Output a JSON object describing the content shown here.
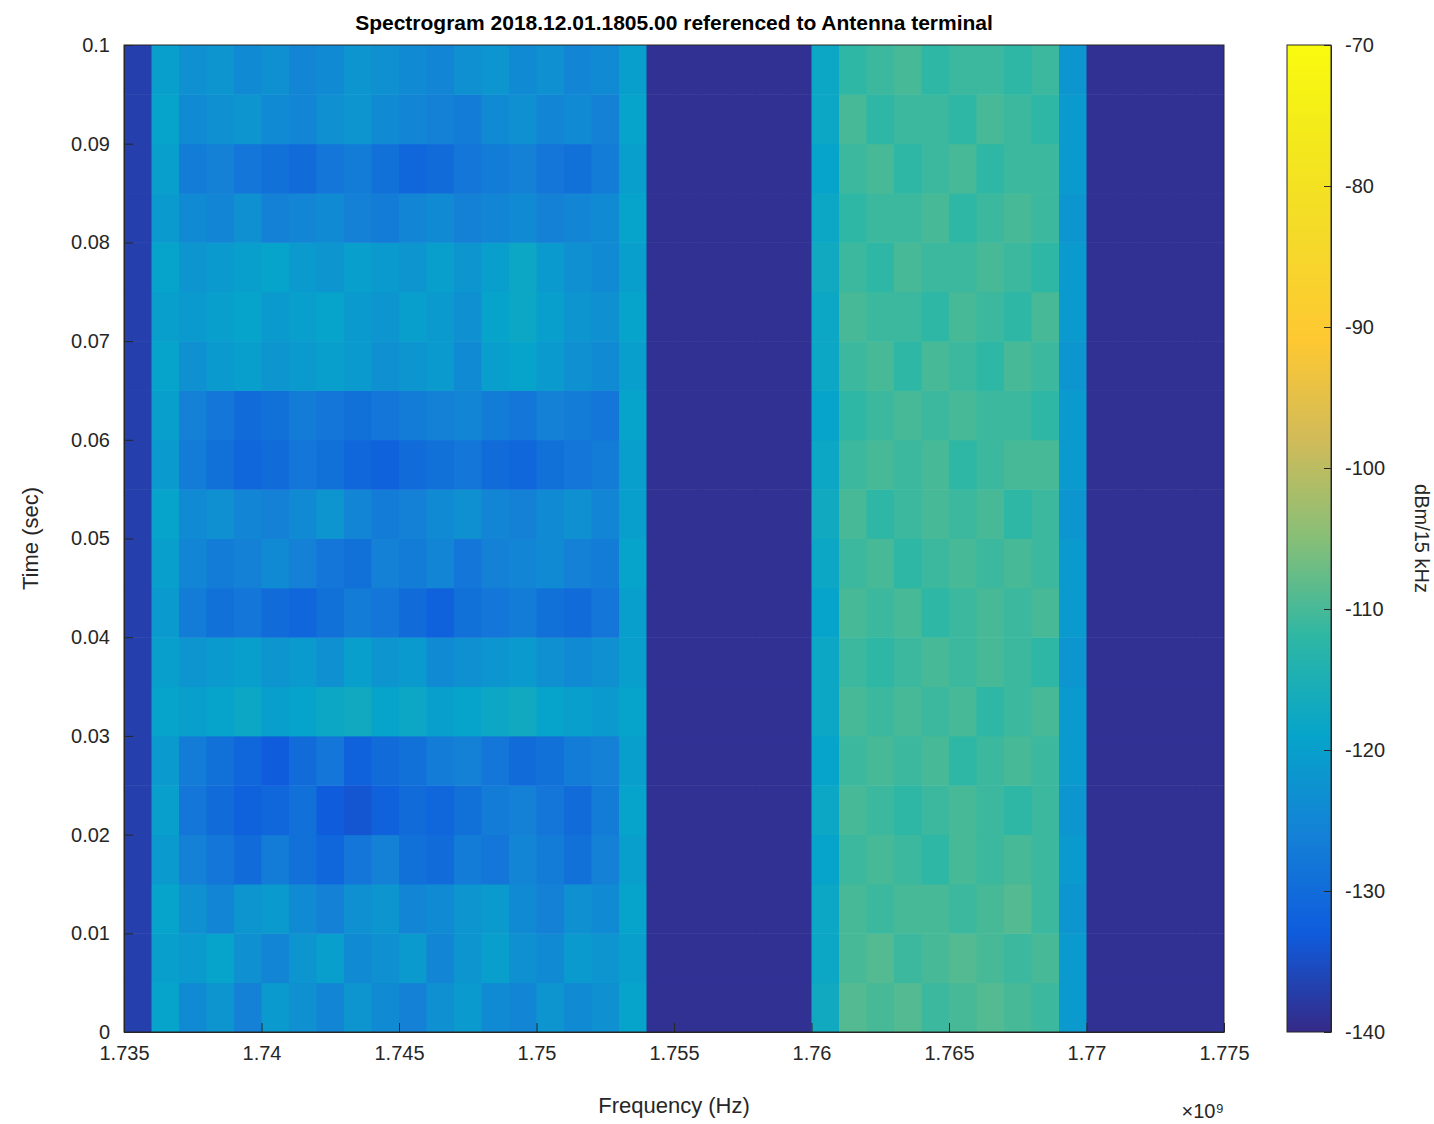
{
  "chart_data": {
    "type": "heatmap",
    "title": "Spectrogram 2018.12.01.1805.00 referenced to Antenna terminal",
    "x_label": "Frequency (Hz)",
    "y_label": "Time (sec)",
    "x_exponent_label": "×10⁹",
    "xlim": [
      1735000000,
      1775000000
    ],
    "xticks": [
      {
        "value": 1735000000,
        "label": "1.735"
      },
      {
        "value": 1740000000,
        "label": "1.74"
      },
      {
        "value": 1745000000,
        "label": "1.745"
      },
      {
        "value": 1750000000,
        "label": "1.75"
      },
      {
        "value": 1755000000,
        "label": "1.755"
      },
      {
        "value": 1760000000,
        "label": "1.76"
      },
      {
        "value": 1765000000,
        "label": "1.765"
      },
      {
        "value": 1770000000,
        "label": "1.77"
      },
      {
        "value": 1775000000,
        "label": "1.775"
      }
    ],
    "ylim": [
      0,
      0.1
    ],
    "yticks": [
      0,
      0.01,
      0.02,
      0.03,
      0.04,
      0.05,
      0.06,
      0.07,
      0.08,
      0.09,
      0.1
    ],
    "x_bins": [
      1735000000,
      1736000000,
      1737000000,
      1738000000,
      1739000000,
      1740000000,
      1741000000,
      1742000000,
      1743000000,
      1744000000,
      1745000000,
      1746000000,
      1747000000,
      1748000000,
      1749000000,
      1750000000,
      1751000000,
      1752000000,
      1753000000,
      1754000000,
      1755000000,
      1756000000,
      1757000000,
      1758000000,
      1759000000,
      1760000000,
      1761000000,
      1762000000,
      1763000000,
      1764000000,
      1765000000,
      1766000000,
      1767000000,
      1768000000,
      1769000000,
      1770000000,
      1771000000,
      1772000000,
      1773000000,
      1774000000,
      1775000000
    ],
    "y_bins": [
      0,
      0.005,
      0.01,
      0.015,
      0.02,
      0.025,
      0.03,
      0.035,
      0.04,
      0.045,
      0.05,
      0.055,
      0.06,
      0.065,
      0.07,
      0.075,
      0.08,
      0.085,
      0.09,
      0.095,
      0.1
    ],
    "z": [
      [
        -137,
        -119,
        -124,
        -122,
        -126,
        -121,
        -123,
        -125,
        -122,
        -124,
        -126,
        -123,
        -121,
        -124,
        -125,
        -122,
        -124,
        -123,
        -119,
        -139,
        -139,
        -139,
        -139,
        -139,
        -139,
        -117,
        -109,
        -110,
        -109,
        -111,
        -110,
        -109,
        -110,
        -111,
        -121,
        -139,
        -139,
        -139,
        -139,
        -139
      ],
      [
        -137,
        -120,
        -121,
        -119,
        -123,
        -125,
        -122,
        -120,
        -124,
        -123,
        -121,
        -125,
        -122,
        -120,
        -123,
        -124,
        -121,
        -122,
        -120,
        -139,
        -139,
        -139,
        -139,
        -139,
        -139,
        -118,
        -110,
        -109,
        -111,
        -110,
        -109,
        -110,
        -111,
        -110,
        -121,
        -139,
        -139,
        -139,
        -139,
        -139
      ],
      [
        -137,
        -119,
        -123,
        -125,
        -122,
        -121,
        -124,
        -126,
        -123,
        -122,
        -125,
        -124,
        -122,
        -121,
        -124,
        -126,
        -123,
        -124,
        -119,
        -139,
        -139,
        -139,
        -139,
        -139,
        -139,
        -118,
        -110,
        -111,
        -110,
        -110,
        -111,
        -110,
        -109,
        -111,
        -122,
        -139,
        -139,
        -139,
        -139,
        -139
      ],
      [
        -137,
        -121,
        -126,
        -128,
        -130,
        -127,
        -129,
        -131,
        -128,
        -126,
        -129,
        -130,
        -127,
        -128,
        -125,
        -127,
        -129,
        -126,
        -120,
        -139,
        -139,
        -139,
        -139,
        -139,
        -139,
        -119,
        -111,
        -110,
        -111,
        -112,
        -110,
        -111,
        -110,
        -111,
        -121,
        -139,
        -139,
        -139,
        -139,
        -139
      ],
      [
        -137,
        -120,
        -128,
        -130,
        -132,
        -131,
        -129,
        -133,
        -134,
        -132,
        -130,
        -131,
        -129,
        -127,
        -126,
        -128,
        -130,
        -127,
        -119,
        -139,
        -139,
        -139,
        -139,
        -139,
        -139,
        -118,
        -110,
        -111,
        -112,
        -111,
        -110,
        -111,
        -112,
        -111,
        -122,
        -139,
        -139,
        -139,
        -139,
        -139
      ],
      [
        -137,
        -121,
        -127,
        -129,
        -131,
        -133,
        -130,
        -128,
        -132,
        -130,
        -129,
        -127,
        -126,
        -128,
        -130,
        -129,
        -127,
        -126,
        -120,
        -139,
        -139,
        -139,
        -139,
        -139,
        -139,
        -119,
        -111,
        -110,
        -111,
        -110,
        -112,
        -111,
        -110,
        -111,
        -121,
        -139,
        -139,
        -139,
        -139,
        -139
      ],
      [
        -137,
        -119,
        -120,
        -119,
        -118,
        -120,
        -119,
        -118,
        -117,
        -119,
        -118,
        -120,
        -119,
        -118,
        -117,
        -119,
        -120,
        -121,
        -119,
        -139,
        -139,
        -139,
        -139,
        -139,
        -139,
        -118,
        -110,
        -111,
        -110,
        -111,
        -110,
        -112,
        -111,
        -110,
        -121,
        -139,
        -139,
        -139,
        -139,
        -139
      ],
      [
        -137,
        -120,
        -122,
        -121,
        -120,
        -122,
        -121,
        -123,
        -120,
        -122,
        -121,
        -124,
        -123,
        -122,
        -121,
        -123,
        -124,
        -123,
        -120,
        -139,
        -139,
        -139,
        -139,
        -139,
        -139,
        -118,
        -111,
        -112,
        -111,
        -110,
        -111,
        -110,
        -111,
        -112,
        -122,
        -139,
        -139,
        -139,
        -139,
        -139
      ],
      [
        -137,
        -121,
        -127,
        -129,
        -128,
        -130,
        -131,
        -129,
        -127,
        -128,
        -130,
        -132,
        -129,
        -128,
        -127,
        -129,
        -130,
        -128,
        -120,
        -139,
        -139,
        -139,
        -139,
        -139,
        -139,
        -119,
        -110,
        -111,
        -110,
        -112,
        -111,
        -110,
        -111,
        -110,
        -121,
        -139,
        -139,
        -139,
        -139,
        -139
      ],
      [
        -137,
        -120,
        -125,
        -127,
        -126,
        -124,
        -126,
        -128,
        -129,
        -126,
        -127,
        -125,
        -128,
        -126,
        -125,
        -124,
        -126,
        -127,
        -119,
        -139,
        -139,
        -139,
        -139,
        -139,
        -139,
        -118,
        -111,
        -110,
        -112,
        -111,
        -110,
        -111,
        -110,
        -111,
        -121,
        -139,
        -139,
        -139,
        -139,
        -139
      ],
      [
        -137,
        -119,
        -124,
        -123,
        -125,
        -126,
        -124,
        -122,
        -125,
        -127,
        -126,
        -124,
        -123,
        -125,
        -126,
        -124,
        -123,
        -125,
        -120,
        -139,
        -139,
        -139,
        -139,
        -139,
        -139,
        -117,
        -110,
        -112,
        -111,
        -110,
        -111,
        -110,
        -112,
        -111,
        -122,
        -139,
        -139,
        -139,
        -139,
        -139
      ],
      [
        -137,
        -121,
        -127,
        -129,
        -131,
        -130,
        -128,
        -129,
        -131,
        -132,
        -130,
        -129,
        -128,
        -130,
        -131,
        -129,
        -128,
        -127,
        -120,
        -139,
        -139,
        -139,
        -139,
        -139,
        -139,
        -118,
        -111,
        -110,
        -111,
        -110,
        -112,
        -111,
        -110,
        -110,
        -121,
        -139,
        -139,
        -139,
        -139,
        -139
      ],
      [
        -137,
        -120,
        -126,
        -128,
        -130,
        -129,
        -127,
        -128,
        -129,
        -128,
        -127,
        -126,
        -125,
        -127,
        -128,
        -126,
        -127,
        -128,
        -119,
        -139,
        -139,
        -139,
        -139,
        -139,
        -139,
        -119,
        -112,
        -111,
        -110,
        -111,
        -110,
        -111,
        -111,
        -112,
        -121,
        -139,
        -139,
        -139,
        -139,
        -139
      ],
      [
        -137,
        -119,
        -123,
        -121,
        -120,
        -122,
        -121,
        -120,
        -121,
        -123,
        -122,
        -121,
        -124,
        -120,
        -119,
        -121,
        -123,
        -124,
        -120,
        -139,
        -139,
        -139,
        -139,
        -139,
        -139,
        -118,
        -111,
        -110,
        -112,
        -110,
        -111,
        -112,
        -110,
        -111,
        -122,
        -139,
        -139,
        -139,
        -139,
        -139
      ],
      [
        -137,
        -120,
        -121,
        -120,
        -119,
        -121,
        -120,
        -119,
        -121,
        -122,
        -120,
        -121,
        -123,
        -119,
        -118,
        -120,
        -122,
        -123,
        -119,
        -139,
        -139,
        -139,
        -139,
        -139,
        -139,
        -118,
        -110,
        -111,
        -111,
        -112,
        -110,
        -111,
        -112,
        -110,
        -121,
        -139,
        -139,
        -139,
        -139,
        -139
      ],
      [
        -137,
        -119,
        -122,
        -121,
        -120,
        -119,
        -121,
        -122,
        -120,
        -121,
        -122,
        -120,
        -122,
        -120,
        -118,
        -121,
        -123,
        -124,
        -120,
        -139,
        -139,
        -139,
        -139,
        -139,
        -139,
        -117,
        -111,
        -112,
        -110,
        -111,
        -111,
        -110,
        -111,
        -112,
        -121,
        -139,
        -139,
        -139,
        -139,
        -139
      ],
      [
        -137,
        -121,
        -124,
        -125,
        -123,
        -126,
        -125,
        -124,
        -126,
        -127,
        -125,
        -124,
        -126,
        -125,
        -124,
        -126,
        -125,
        -124,
        -119,
        -139,
        -139,
        -139,
        -139,
        -139,
        -139,
        -118,
        -112,
        -111,
        -111,
        -110,
        -112,
        -111,
        -110,
        -111,
        -122,
        -139,
        -139,
        -139,
        -139,
        -139
      ],
      [
        -137,
        -120,
        -127,
        -126,
        -128,
        -129,
        -130,
        -128,
        -127,
        -129,
        -131,
        -130,
        -128,
        -127,
        -126,
        -128,
        -129,
        -127,
        -120,
        -139,
        -139,
        -139,
        -139,
        -139,
        -139,
        -119,
        -111,
        -110,
        -112,
        -111,
        -110,
        -112,
        -111,
        -111,
        -121,
        -139,
        -139,
        -139,
        -139,
        -139
      ],
      [
        -137,
        -119,
        -124,
        -123,
        -122,
        -124,
        -125,
        -123,
        -122,
        -124,
        -125,
        -126,
        -127,
        -124,
        -123,
        -125,
        -124,
        -126,
        -119,
        -139,
        -139,
        -139,
        -139,
        -139,
        -139,
        -118,
        -110,
        -112,
        -111,
        -111,
        -112,
        -110,
        -111,
        -112,
        -121,
        -139,
        -139,
        -139,
        -139,
        -139
      ],
      [
        -137,
        -120,
        -123,
        -122,
        -124,
        -123,
        -125,
        -124,
        -122,
        -123,
        -124,
        -125,
        -123,
        -122,
        -124,
        -123,
        -125,
        -124,
        -120,
        -139,
        -139,
        -139,
        -139,
        -139,
        -139,
        -118,
        -112,
        -111,
        -110,
        -112,
        -111,
        -111,
        -112,
        -111,
        -122,
        -139,
        -139,
        -139,
        -139,
        -139
      ]
    ],
    "colorbar": {
      "label": "dBm/15 kHz",
      "range": [
        -140,
        -70
      ],
      "ticks": [
        -140,
        -130,
        -120,
        -110,
        -100,
        -90,
        -80,
        -70
      ]
    }
  }
}
